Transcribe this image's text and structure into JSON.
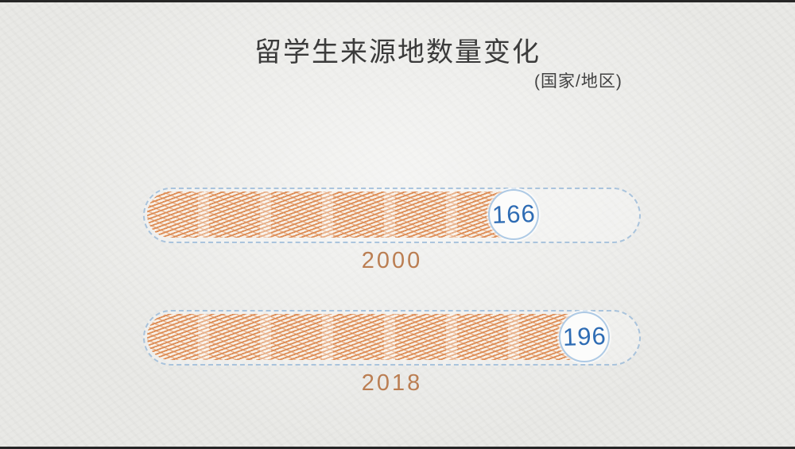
{
  "page": {
    "background_color": "#e9e9e6",
    "frame_edge_color": "#262626",
    "style": "hand-drawn sketch on paper texture"
  },
  "chart_data": {
    "type": "bar",
    "orientation": "horizontal",
    "title": "留学生来源地数量变化",
    "subtitle": "(国家/地区)",
    "categories": [
      "2000",
      "2018"
    ],
    "values": [
      166,
      196
    ],
    "xlim": [
      0,
      210
    ],
    "grid": false,
    "legend": "none",
    "bars": [
      {
        "year": "2000",
        "value": 166
      },
      {
        "year": "2018",
        "value": 196
      }
    ],
    "colors": {
      "bar_hatch": "#dd8c55",
      "bar_hatch_soft": "#e4a87d",
      "track_outline": "#92b4d6",
      "value_text": "#2e6cb4",
      "year_label": "#bb7e52",
      "title_text": "#3b3b3b"
    }
  }
}
